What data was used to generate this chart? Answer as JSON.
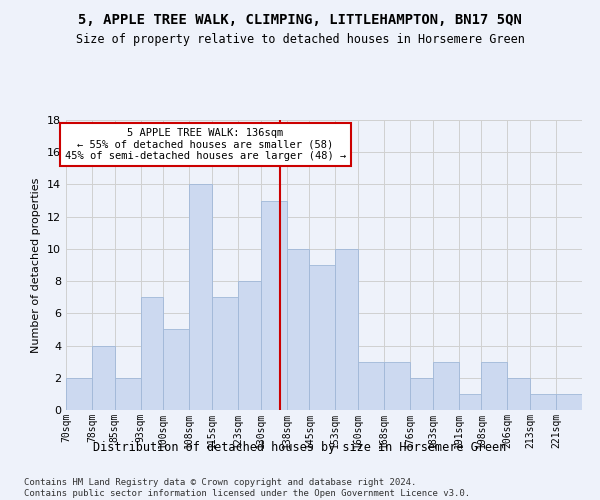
{
  "title": "5, APPLE TREE WALK, CLIMPING, LITTLEHAMPTON, BN17 5QN",
  "subtitle": "Size of property relative to detached houses in Horsemere Green",
  "xlabel": "Distribution of detached houses by size in Horsemere Green",
  "ylabel": "Number of detached properties",
  "bin_labels": [
    "70sqm",
    "78sqm",
    "85sqm",
    "93sqm",
    "100sqm",
    "108sqm",
    "115sqm",
    "123sqm",
    "130sqm",
    "138sqm",
    "145sqm",
    "153sqm",
    "160sqm",
    "168sqm",
    "176sqm",
    "183sqm",
    "191sqm",
    "198sqm",
    "206sqm",
    "213sqm",
    "221sqm"
  ],
  "bin_edges": [
    70,
    78,
    85,
    93,
    100,
    108,
    115,
    123,
    130,
    138,
    145,
    153,
    160,
    168,
    176,
    183,
    191,
    198,
    206,
    213,
    221,
    229
  ],
  "values": [
    2,
    4,
    2,
    7,
    5,
    14,
    7,
    8,
    13,
    10,
    9,
    10,
    3,
    3,
    2,
    3,
    1,
    3,
    2,
    1,
    1
  ],
  "bar_color": "#ccd9f0",
  "bar_edge_color": "#a0b8d8",
  "grid_color": "#d0d0d0",
  "vline_x": 136,
  "vline_color": "#cc0000",
  "annotation_text": "5 APPLE TREE WALK: 136sqm\n← 55% of detached houses are smaller (58)\n45% of semi-detached houses are larger (48) →",
  "annotation_box_color": "#ffffff",
  "annotation_box_edge": "#cc0000",
  "ylim": [
    0,
    18
  ],
  "yticks": [
    0,
    2,
    4,
    6,
    8,
    10,
    12,
    14,
    16,
    18
  ],
  "footnote": "Contains HM Land Registry data © Crown copyright and database right 2024.\nContains public sector information licensed under the Open Government Licence v3.0.",
  "background_color": "#eef2fa"
}
